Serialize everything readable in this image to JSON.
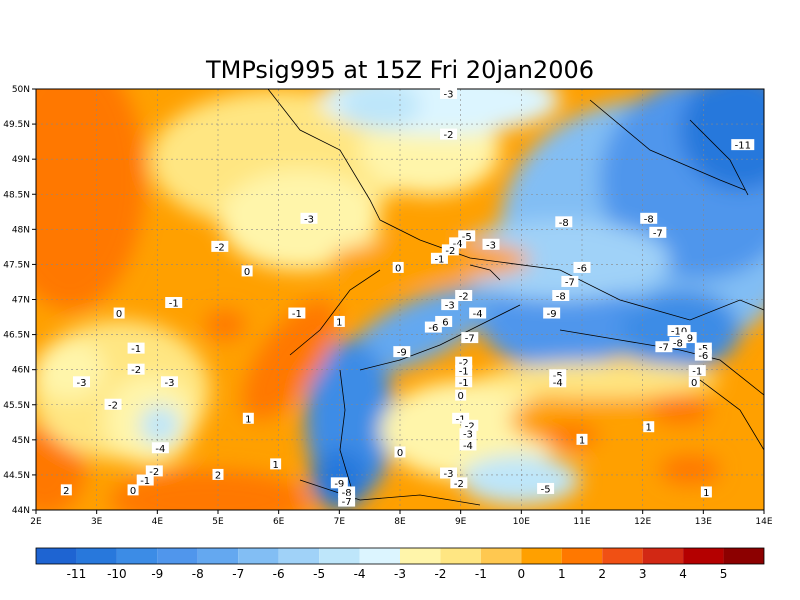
{
  "map": {
    "title": "TMPsig995 at 15Z Fri 20jan2006",
    "lon_range": [
      2,
      14
    ],
    "lat_range": [
      44,
      50
    ],
    "x_ticks": [
      "2E",
      "3E",
      "4E",
      "5E",
      "6E",
      "7E",
      "8E",
      "9E",
      "10E",
      "11E",
      "12E",
      "13E",
      "14E"
    ],
    "y_ticks": [
      "44N",
      "44.5N",
      "45N",
      "45.5N",
      "46N",
      "46.5N",
      "47N",
      "47.5N",
      "48N",
      "48.5N",
      "49N",
      "49.5N",
      "50N"
    ],
    "grid": "dotted",
    "colorbar": {
      "labels": [
        "-11",
        "-10",
        "-9",
        "-8",
        "-7",
        "-6",
        "-5",
        "-4",
        "-3",
        "-2",
        "-1",
        "0",
        "1",
        "2",
        "3",
        "4",
        "5"
      ],
      "colors": [
        "#1e64d2",
        "#2878dc",
        "#3c8ce6",
        "#5096ec",
        "#64a8f0",
        "#82bef4",
        "#a0d2f8",
        "#bee6fa",
        "#dcf5ff",
        "#fff5aa",
        "#ffe682",
        "#ffc850",
        "#ffa000",
        "#ff7800",
        "#f05014",
        "#d22814",
        "#b40000",
        "#8c0000"
      ]
    },
    "contour_labels": [
      {
        "text": "-3",
        "lon": 8.8,
        "lat": 49.93
      },
      {
        "text": "-2",
        "lon": 8.8,
        "lat": 49.35
      },
      {
        "text": "-11",
        "lon": 13.65,
        "lat": 49.2
      },
      {
        "text": "-3",
        "lon": 6.5,
        "lat": 48.15
      },
      {
        "text": "-8",
        "lon": 10.7,
        "lat": 48.1
      },
      {
        "text": "-8",
        "lon": 12.1,
        "lat": 48.15
      },
      {
        "text": "-7",
        "lon": 12.25,
        "lat": 47.95
      },
      {
        "text": "-5",
        "lon": 9.1,
        "lat": 47.9
      },
      {
        "text": "-4",
        "lon": 8.95,
        "lat": 47.8
      },
      {
        "text": "-3",
        "lon": 9.5,
        "lat": 47.78
      },
      {
        "text": "-2",
        "lon": 8.83,
        "lat": 47.7
      },
      {
        "text": "-2",
        "lon": 5.03,
        "lat": 47.75
      },
      {
        "text": "-1",
        "lon": 8.65,
        "lat": 47.58
      },
      {
        "text": "0",
        "lon": 7.97,
        "lat": 47.45
      },
      {
        "text": "0",
        "lon": 5.48,
        "lat": 47.4
      },
      {
        "text": "-6",
        "lon": 11.0,
        "lat": 47.45
      },
      {
        "text": "-7",
        "lon": 10.8,
        "lat": 47.25
      },
      {
        "text": "-8",
        "lon": 10.65,
        "lat": 47.05
      },
      {
        "text": "-1",
        "lon": 4.27,
        "lat": 46.95
      },
      {
        "text": "-2",
        "lon": 9.05,
        "lat": 47.05
      },
      {
        "text": "-3",
        "lon": 8.82,
        "lat": 46.92
      },
      {
        "text": "-1",
        "lon": 6.3,
        "lat": 46.8
      },
      {
        "text": "-4",
        "lon": 9.28,
        "lat": 46.8
      },
      {
        "text": "-9",
        "lon": 10.5,
        "lat": 46.8
      },
      {
        "text": "0",
        "lon": 3.37,
        "lat": 46.8
      },
      {
        "text": "1",
        "lon": 7.0,
        "lat": 46.68
      },
      {
        "text": "-6",
        "lon": 8.72,
        "lat": 46.68
      },
      {
        "text": "-6",
        "lon": 8.55,
        "lat": 46.6
      },
      {
        "text": "-10",
        "lon": 12.6,
        "lat": 46.55
      },
      {
        "text": "-7",
        "lon": 9.15,
        "lat": 46.45
      },
      {
        "text": "-9",
        "lon": 12.75,
        "lat": 46.45
      },
      {
        "text": "-8",
        "lon": 12.58,
        "lat": 46.38
      },
      {
        "text": "-7",
        "lon": 12.35,
        "lat": 46.32
      },
      {
        "text": "-1",
        "lon": 3.65,
        "lat": 46.3
      },
      {
        "text": "-9",
        "lon": 8.03,
        "lat": 46.25
      },
      {
        "text": "-5",
        "lon": 13.0,
        "lat": 46.3
      },
      {
        "text": "-6",
        "lon": 13.0,
        "lat": 46.2
      },
      {
        "text": "-2",
        "lon": 9.05,
        "lat": 46.1
      },
      {
        "text": "-2",
        "lon": 3.65,
        "lat": 46.0
      },
      {
        "text": "-1",
        "lon": 9.05,
        "lat": 45.98
      },
      {
        "text": "-1",
        "lon": 12.9,
        "lat": 45.98
      },
      {
        "text": "-5",
        "lon": 10.6,
        "lat": 45.92
      },
      {
        "text": "-4",
        "lon": 10.6,
        "lat": 45.82
      },
      {
        "text": "-1",
        "lon": 9.05,
        "lat": 45.82
      },
      {
        "text": "-3",
        "lon": 2.75,
        "lat": 45.82
      },
      {
        "text": "-3",
        "lon": 4.2,
        "lat": 45.82
      },
      {
        "text": "0",
        "lon": 12.85,
        "lat": 45.82
      },
      {
        "text": "0",
        "lon": 9.0,
        "lat": 45.63
      },
      {
        "text": "-2",
        "lon": 3.27,
        "lat": 45.5
      },
      {
        "text": "1",
        "lon": 5.5,
        "lat": 45.3
      },
      {
        "text": "-1",
        "lon": 9.0,
        "lat": 45.3
      },
      {
        "text": "-2",
        "lon": 9.15,
        "lat": 45.2
      },
      {
        "text": "1",
        "lon": 12.1,
        "lat": 45.18
      },
      {
        "text": "-3",
        "lon": 9.12,
        "lat": 45.08
      },
      {
        "text": "1",
        "lon": 11.0,
        "lat": 45.0
      },
      {
        "text": "-4",
        "lon": 4.05,
        "lat": 44.88
      },
      {
        "text": "-4",
        "lon": 9.12,
        "lat": 44.92
      },
      {
        "text": "0",
        "lon": 8.0,
        "lat": 44.82
      },
      {
        "text": "1",
        "lon": 5.95,
        "lat": 44.65
      },
      {
        "text": "-2",
        "lon": 3.95,
        "lat": 44.55
      },
      {
        "text": "-3",
        "lon": 8.8,
        "lat": 44.52
      },
      {
        "text": "2",
        "lon": 5.0,
        "lat": 44.5
      },
      {
        "text": "-1",
        "lon": 3.8,
        "lat": 44.42
      },
      {
        "text": "-2",
        "lon": 8.97,
        "lat": 44.38
      },
      {
        "text": "-9",
        "lon": 7.0,
        "lat": 44.38
      },
      {
        "text": "-5",
        "lon": 10.4,
        "lat": 44.3
      },
      {
        "text": "0",
        "lon": 3.6,
        "lat": 44.28
      },
      {
        "text": "2",
        "lon": 2.5,
        "lat": 44.28
      },
      {
        "text": "-8",
        "lon": 7.12,
        "lat": 44.25
      },
      {
        "text": "1",
        "lon": 13.05,
        "lat": 44.25
      },
      {
        "text": "-7",
        "lon": 7.12,
        "lat": 44.12
      }
    ]
  }
}
